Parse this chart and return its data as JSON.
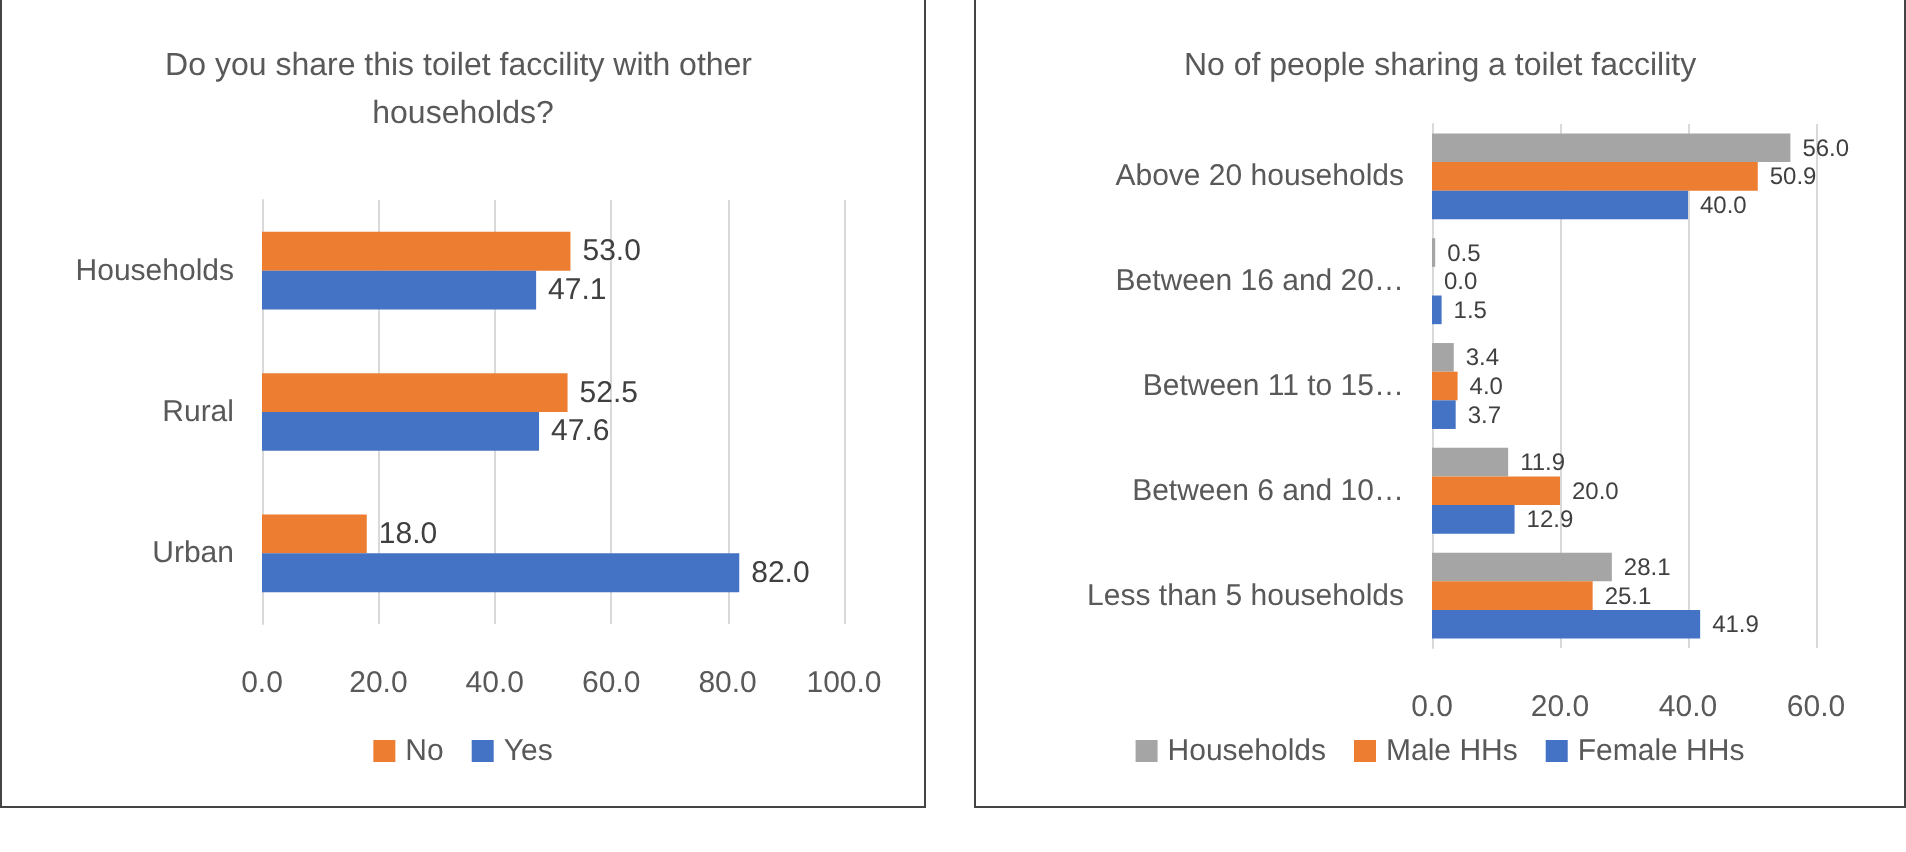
{
  "chart_data": [
    {
      "type": "bar",
      "orientation": "horizontal",
      "title": "Do you share this toilet faccility with other households?",
      "categories": [
        "Households",
        "Rural",
        "Urban"
      ],
      "series": [
        {
          "name": "No",
          "color": "#ed7d31",
          "values": [
            53.0,
            52.5,
            18.0
          ],
          "value_labels": [
            "53.0",
            "52.5",
            "18.0"
          ]
        },
        {
          "name": "Yes",
          "color": "#4472c4",
          "values": [
            47.1,
            47.6,
            82.0
          ],
          "value_labels": [
            "47.1",
            "47.6",
            "82.0"
          ]
        }
      ],
      "xlim": [
        0,
        100
      ],
      "xticks": [
        {
          "value": 0,
          "label": "0.0"
        },
        {
          "value": 20,
          "label": "20.0"
        },
        {
          "value": 40,
          "label": "40.0"
        },
        {
          "value": 60,
          "label": "60.0"
        },
        {
          "value": 80,
          "label": "80.0"
        },
        {
          "value": 100,
          "label": "100.0"
        }
      ],
      "grid": "x",
      "legend": "bottom"
    },
    {
      "type": "bar",
      "orientation": "horizontal",
      "title": "No of people sharing a toilet faccility",
      "categories": [
        "Above 20 households",
        "Between 16 and 20…",
        "Between 11 to 15…",
        "Between 6 and 10…",
        "Less than 5 households"
      ],
      "series": [
        {
          "name": "Households",
          "color": "#a5a5a5",
          "values": [
            56.0,
            0.5,
            3.4,
            11.9,
            28.1
          ],
          "value_labels": [
            "56.0",
            "0.5",
            "3.4",
            "11.9",
            "28.1"
          ]
        },
        {
          "name": "Male HHs",
          "color": "#ed7d31",
          "values": [
            50.9,
            0.0,
            4.0,
            20.0,
            25.1
          ],
          "value_labels": [
            "50.9",
            "0.0",
            "4.0",
            "20.0",
            "25.1"
          ]
        },
        {
          "name": "Female HHs",
          "color": "#4472c4",
          "values": [
            40.0,
            1.5,
            3.7,
            12.9,
            41.9
          ],
          "value_labels": [
            "40.0",
            "1.5",
            "3.7",
            "12.9",
            "41.9"
          ]
        }
      ],
      "xlim": [
        0,
        60
      ],
      "xticks": [
        {
          "value": 0,
          "label": "0.0"
        },
        {
          "value": 20,
          "label": "20.0"
        },
        {
          "value": 40,
          "label": "40.0"
        },
        {
          "value": 60,
          "label": "60.0"
        }
      ],
      "grid": "x",
      "legend": "bottom"
    }
  ]
}
